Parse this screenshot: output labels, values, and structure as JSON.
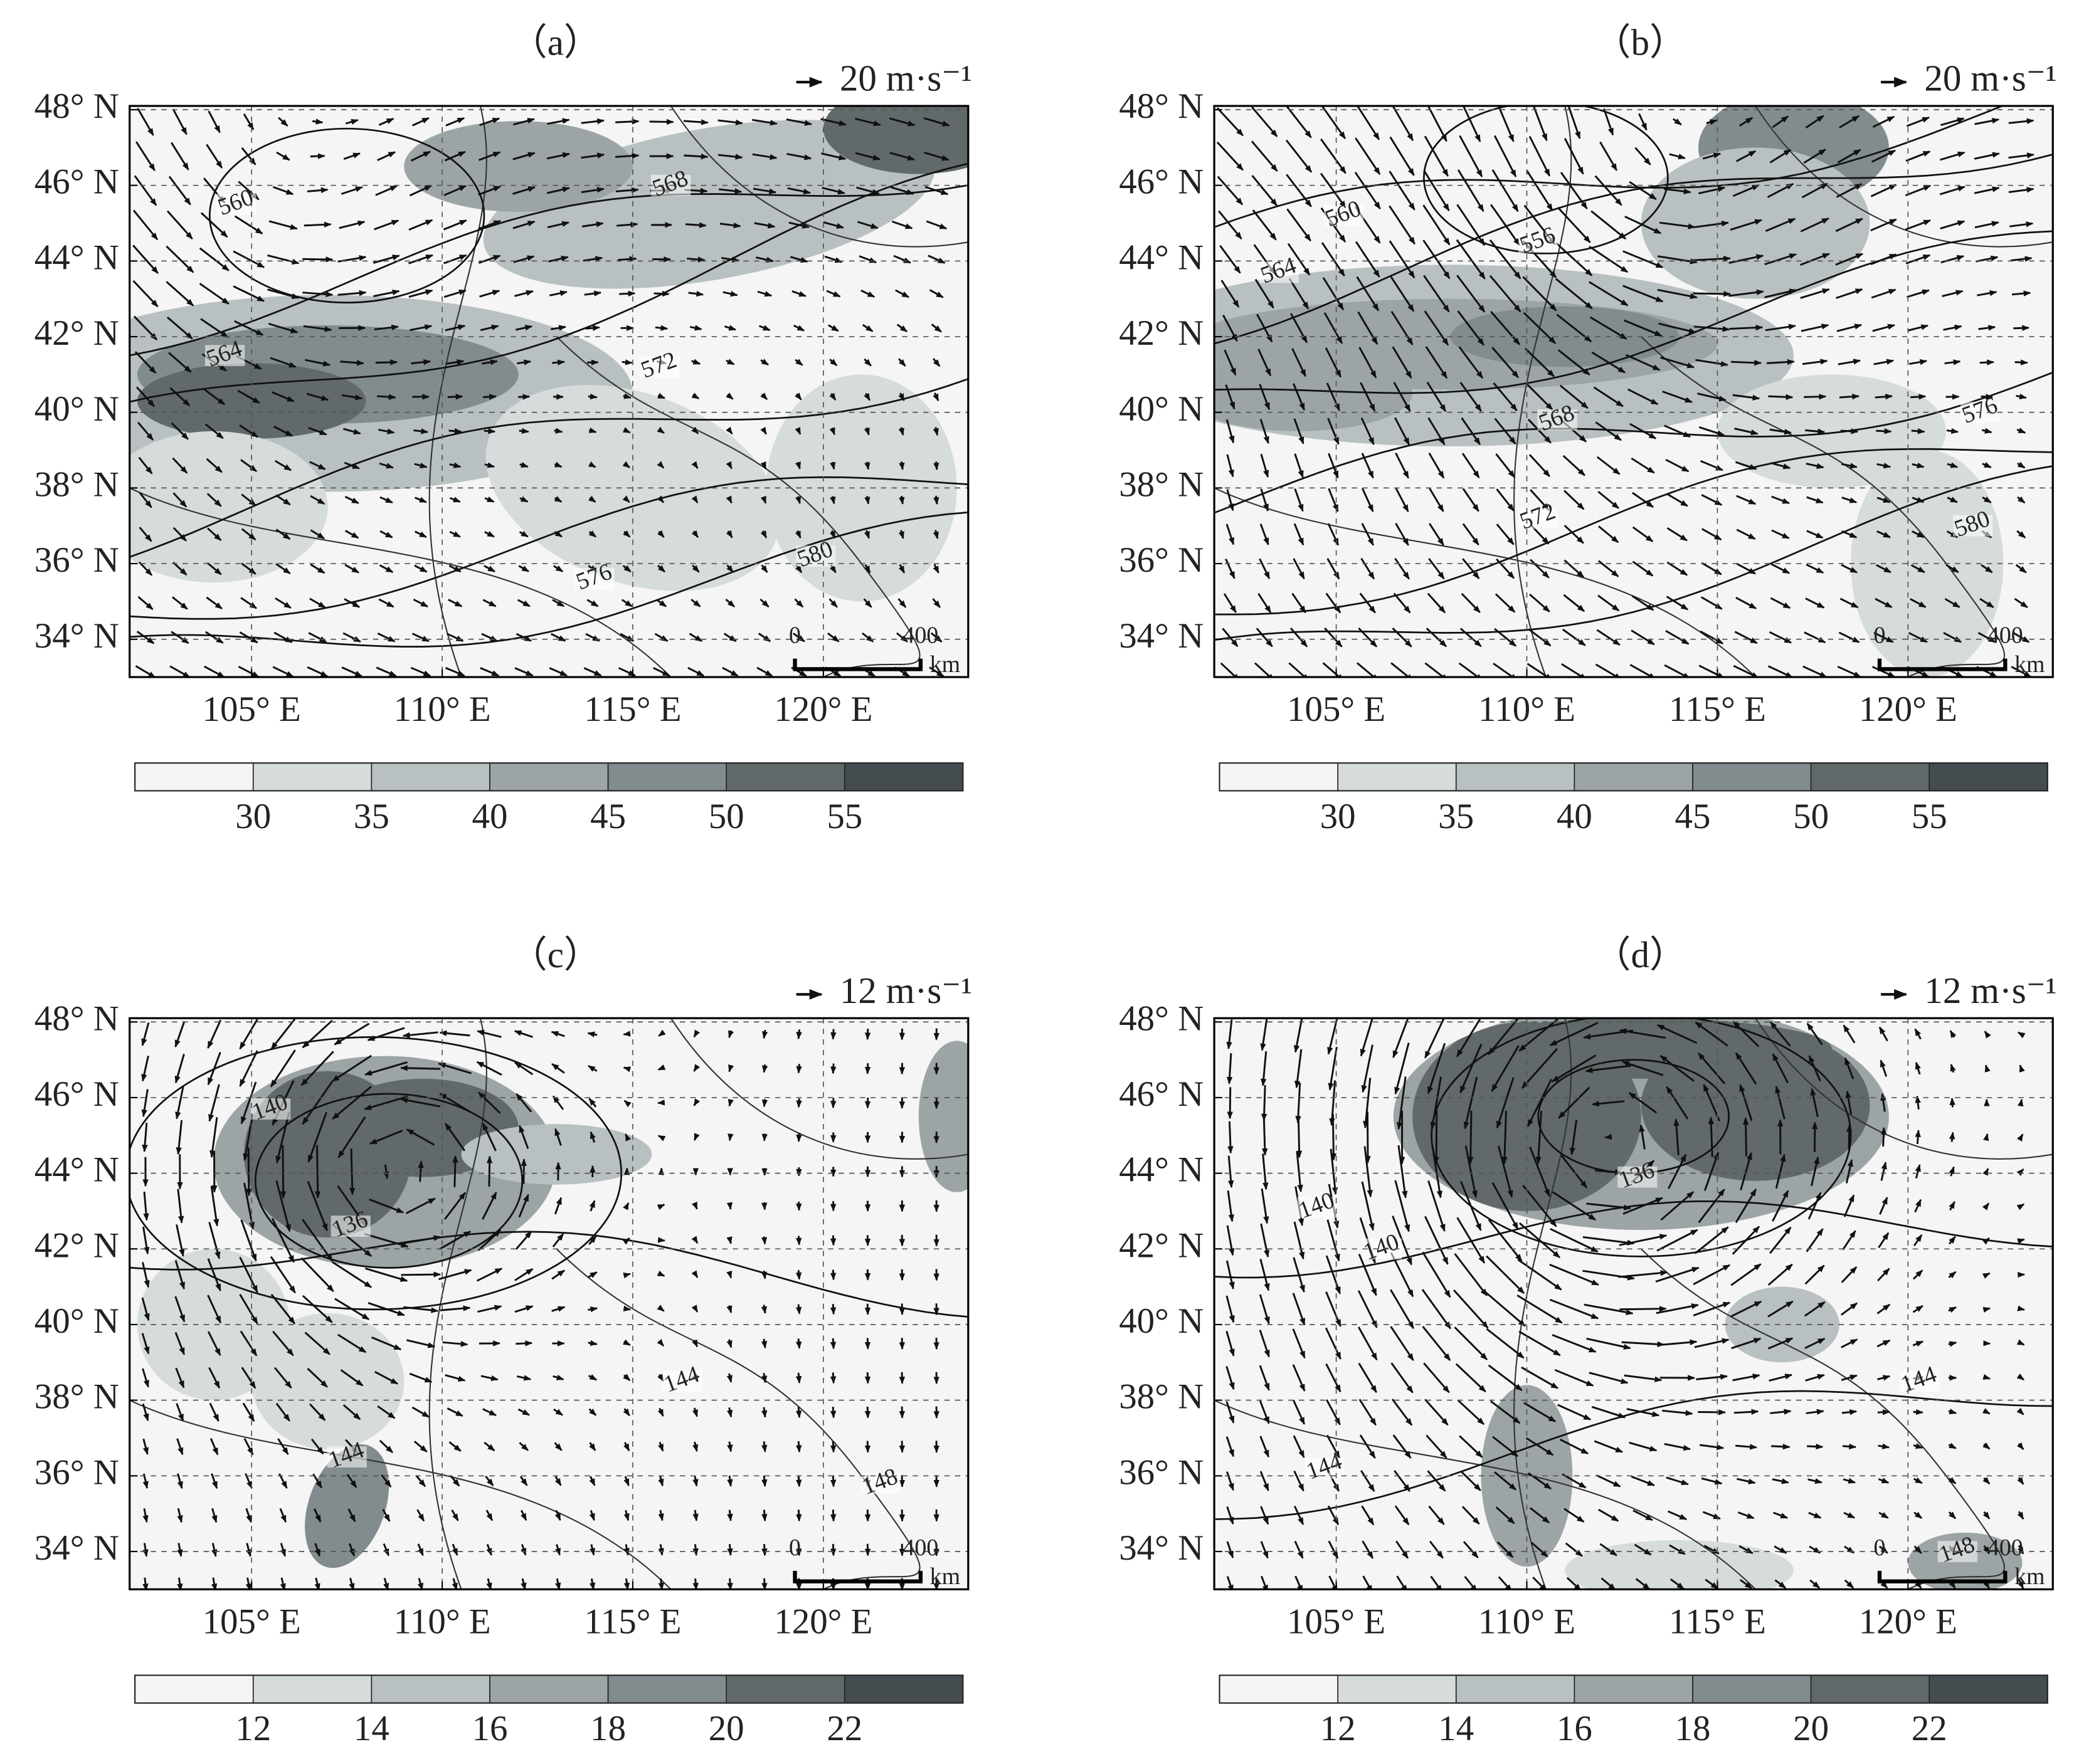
{
  "panels": [
    {
      "label": "（a）",
      "vector_key": "20 m·s⁻¹",
      "xlim": [
        101.8,
        123.8
      ],
      "ylim": [
        33,
        48.1
      ],
      "xticks": [
        {
          "value": 105,
          "label": "105° E"
        },
        {
          "value": 110,
          "label": "110° E"
        },
        {
          "value": 115,
          "label": "115° E"
        },
        {
          "value": 120,
          "label": "120° E"
        }
      ],
      "yticks": [
        {
          "value": 34,
          "label": "34° N"
        },
        {
          "value": 36,
          "label": "36° N"
        },
        {
          "value": 38,
          "label": "38° N"
        },
        {
          "value": 40,
          "label": "40° N"
        },
        {
          "value": 42,
          "label": "42° N"
        },
        {
          "value": 44,
          "label": "44° N"
        },
        {
          "value": 46,
          "label": "46° N"
        },
        {
          "value": 48,
          "label": "48° N"
        }
      ],
      "contour_labels": [
        560,
        568,
        564,
        572,
        576,
        580
      ],
      "scale_bar": {
        "labels": [
          "0",
          "400"
        ],
        "unit": "km"
      },
      "colorbar": {
        "lim": [
          25,
          60
        ],
        "ticks": [
          30,
          35,
          40,
          45,
          50,
          55
        ],
        "colors": [
          "#f4f5f4",
          "#d6dbdb",
          "#b9c0c1",
          "#9ca4a6",
          "#828b8d",
          "#62696b",
          "#454c4f"
        ]
      }
    },
    {
      "label": "（b）",
      "vector_key": "20 m·s⁻¹",
      "xlim": [
        101.8,
        123.8
      ],
      "ylim": [
        33,
        48.1
      ],
      "xticks": [
        {
          "value": 105,
          "label": "105° E"
        },
        {
          "value": 110,
          "label": "110° E"
        },
        {
          "value": 115,
          "label": "115° E"
        },
        {
          "value": 120,
          "label": "120° E"
        }
      ],
      "yticks": [
        {
          "value": 34,
          "label": "34° N"
        },
        {
          "value": 36,
          "label": "36° N"
        },
        {
          "value": 38,
          "label": "38° N"
        },
        {
          "value": 40,
          "label": "40° N"
        },
        {
          "value": 42,
          "label": "42° N"
        },
        {
          "value": 44,
          "label": "44° N"
        },
        {
          "value": 46,
          "label": "46° N"
        },
        {
          "value": 48,
          "label": "48° N"
        }
      ],
      "contour_labels": [
        560,
        556,
        564,
        568,
        572,
        576,
        580
      ],
      "scale_bar": {
        "labels": [
          "0",
          "400"
        ],
        "unit": "km"
      },
      "colorbar": {
        "lim": [
          25,
          60
        ],
        "ticks": [
          30,
          35,
          40,
          45,
          50,
          55
        ],
        "colors": [
          "#f4f5f4",
          "#d6dbdb",
          "#b9c0c1",
          "#9ca4a6",
          "#828b8d",
          "#62696b",
          "#454c4f"
        ]
      }
    },
    {
      "label": "（c）",
      "vector_key": "12 m·s⁻¹",
      "xlim": [
        101.8,
        123.8
      ],
      "ylim": [
        33,
        48.1
      ],
      "xticks": [
        {
          "value": 105,
          "label": "105° E"
        },
        {
          "value": 110,
          "label": "110° E"
        },
        {
          "value": 115,
          "label": "115° E"
        },
        {
          "value": 120,
          "label": "120° E"
        }
      ],
      "yticks": [
        {
          "value": 34,
          "label": "34° N"
        },
        {
          "value": 36,
          "label": "36° N"
        },
        {
          "value": 38,
          "label": "38° N"
        },
        {
          "value": 40,
          "label": "40° N"
        },
        {
          "value": 42,
          "label": "42° N"
        },
        {
          "value": 44,
          "label": "44° N"
        },
        {
          "value": 46,
          "label": "46° N"
        },
        {
          "value": 48,
          "label": "48° N"
        }
      ],
      "contour_labels": [
        140,
        136,
        144,
        144,
        148
      ],
      "scale_bar": {
        "labels": [
          "0",
          "400"
        ],
        "unit": "km"
      },
      "colorbar": {
        "lim": [
          10,
          24
        ],
        "ticks": [
          12,
          14,
          16,
          18,
          20,
          22
        ],
        "colors": [
          "#f4f5f4",
          "#d6dbdb",
          "#b9c0c1",
          "#9ca4a6",
          "#828b8d",
          "#62696b",
          "#454c4f"
        ]
      }
    },
    {
      "label": "（d）",
      "vector_key": "12 m·s⁻¹",
      "xlim": [
        101.8,
        123.8
      ],
      "ylim": [
        33,
        48.1
      ],
      "xticks": [
        {
          "value": 105,
          "label": "105° E"
        },
        {
          "value": 110,
          "label": "110° E"
        },
        {
          "value": 115,
          "label": "115° E"
        },
        {
          "value": 120,
          "label": "120° E"
        }
      ],
      "yticks": [
        {
          "value": 34,
          "label": "34° N"
        },
        {
          "value": 36,
          "label": "36° N"
        },
        {
          "value": 38,
          "label": "38° N"
        },
        {
          "value": 40,
          "label": "40° N"
        },
        {
          "value": 42,
          "label": "42° N"
        },
        {
          "value": 44,
          "label": "44° N"
        },
        {
          "value": 46,
          "label": "46° N"
        },
        {
          "value": 48,
          "label": "48° N"
        }
      ],
      "contour_labels": [
        140,
        140,
        136,
        144,
        144,
        148
      ],
      "scale_bar": {
        "labels": [
          "0",
          "400"
        ],
        "unit": "km"
      },
      "colorbar": {
        "lim": [
          10,
          24
        ],
        "ticks": [
          12,
          14,
          16,
          18,
          20,
          22
        ],
        "colors": [
          "#f4f5f4",
          "#d6dbdb",
          "#b9c0c1",
          "#9ca4a6",
          "#828b8d",
          "#62696b",
          "#454c4f"
        ]
      }
    }
  ]
}
